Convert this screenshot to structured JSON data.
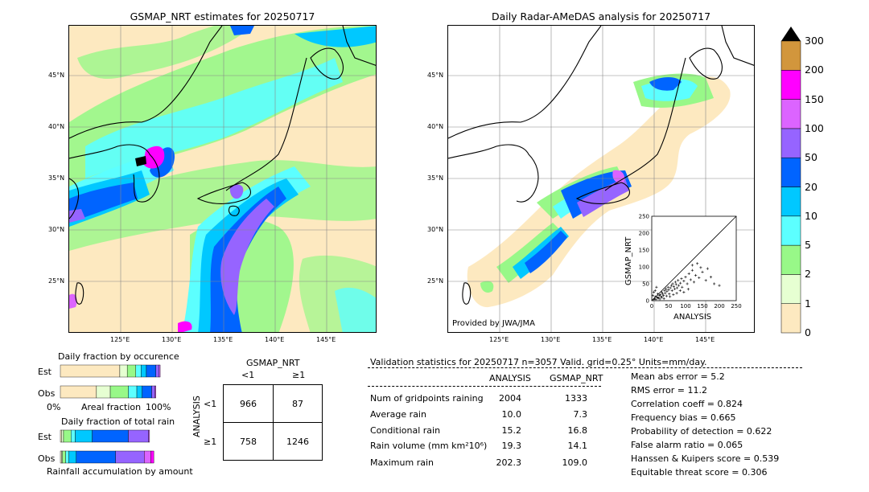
{
  "left_map": {
    "title": "GSMAP_NRT estimates for 20250717",
    "lat_labels": [
      "45°N",
      "40°N",
      "35°N",
      "30°N",
      "25°N"
    ],
    "lon_labels": [
      "125°E",
      "130°E",
      "135°E",
      "140°E",
      "145°E"
    ]
  },
  "right_map": {
    "title": "Daily Radar-AMeDAS analysis for 20250717",
    "lat_labels": [
      "45°N",
      "40°N",
      "35°N",
      "30°N",
      "25°N"
    ],
    "lon_labels": [
      "125°E",
      "130°E",
      "135°E",
      "140°E",
      "145°E"
    ],
    "credit": "Provided by JWA/JMA"
  },
  "colorbar": {
    "levels": [
      "0",
      "1",
      "2",
      "5",
      "10",
      "20",
      "50",
      "100",
      "150",
      "200",
      "300"
    ],
    "colors": [
      "#fde9c0",
      "#e6ffd2",
      "#98f888",
      "#5cffff",
      "#00c8ff",
      "#0064ff",
      "#9664ff",
      "#dc64ff",
      "#ff00ff",
      "#d2963c"
    ],
    "extend_color": "#000000"
  },
  "occurrence": {
    "title": "Daily fraction by occurence",
    "row_est": "Est",
    "row_obs": "Obs",
    "x_left": "0%",
    "x_mid": "Areal fraction",
    "x_right": "100%",
    "est_fracs": [
      0.56,
      0.07,
      0.08,
      0.05,
      0.05,
      0.09,
      0.03,
      0.01
    ],
    "obs_fracs": [
      0.34,
      0.13,
      0.17,
      0.08,
      0.05,
      0.09,
      0.03,
      0.01
    ]
  },
  "total_rain": {
    "title": "Daily fraction of total rain",
    "row_est": "Est",
    "row_obs": "Obs",
    "x_label": "Rainfall accumulation by amount",
    "est_fracs": [
      0.01,
      0.02,
      0.07,
      0.04,
      0.16,
      0.34,
      0.19,
      0.01
    ],
    "obs_fracs": [
      0.01,
      0.01,
      0.03,
      0.03,
      0.07,
      0.37,
      0.27,
      0.06,
      0.03
    ]
  },
  "contingency": {
    "title": "GSMAP_NRT",
    "col_lt": "<1",
    "col_ge": "≥1",
    "row_axis": "ANALYSIS",
    "row_lt": "<1",
    "row_ge": "≥1",
    "cells": [
      "966",
      "87",
      "758",
      "1246"
    ]
  },
  "validation": {
    "header": "Validation statistics for 20250717  n=3057 Valid. grid=0.25° Units=mm/day.",
    "col_analysis": "ANALYSIS",
    "col_gsmap": "GSMAP_NRT",
    "rows": [
      {
        "label": "Num of gridpoints raining",
        "analysis": "2004",
        "gsmap": "1333"
      },
      {
        "label": "Average rain",
        "analysis": "10.0",
        "gsmap": "7.3"
      },
      {
        "label": "Conditional rain",
        "analysis": "15.2",
        "gsmap": "16.8"
      },
      {
        "label": "Rain volume (mm km²10⁶)",
        "analysis": "19.3",
        "gsmap": "14.1"
      },
      {
        "label": "Maximum rain",
        "analysis": "202.3",
        "gsmap": "109.0"
      }
    ],
    "scores": [
      "Mean abs error =    5.2",
      "RMS error =   11.2",
      "Correlation coeff =  0.824",
      "Frequency bias =  0.665",
      "Probability of detection =  0.622",
      "False alarm ratio =  0.065",
      "Hanssen & Kuipers score =  0.539",
      "Equitable threat score =  0.306"
    ]
  },
  "chart_data": {
    "type": "scatter",
    "xlabel": "ANALYSIS",
    "ylabel": "GSMAP_NRT",
    "xlim": [
      0,
      250
    ],
    "ylim": [
      0,
      250
    ],
    "ticks": [
      0,
      50,
      100,
      150,
      200,
      250
    ],
    "points": [
      [
        5,
        3
      ],
      [
        8,
        6
      ],
      [
        10,
        12
      ],
      [
        12,
        4
      ],
      [
        15,
        10
      ],
      [
        18,
        20
      ],
      [
        20,
        8
      ],
      [
        22,
        15
      ],
      [
        25,
        18
      ],
      [
        28,
        12
      ],
      [
        30,
        25
      ],
      [
        32,
        20
      ],
      [
        35,
        15
      ],
      [
        38,
        30
      ],
      [
        40,
        22
      ],
      [
        42,
        35
      ],
      [
        45,
        28
      ],
      [
        48,
        40
      ],
      [
        50,
        32
      ],
      [
        52,
        20
      ],
      [
        55,
        38
      ],
      [
        58,
        45
      ],
      [
        60,
        30
      ],
      [
        62,
        50
      ],
      [
        65,
        42
      ],
      [
        68,
        35
      ],
      [
        70,
        55
      ],
      [
        72,
        48
      ],
      [
        75,
        38
      ],
      [
        78,
        60
      ],
      [
        80,
        45
      ],
      [
        85,
        52
      ],
      [
        88,
        65
      ],
      [
        90,
        40
      ],
      [
        95,
        58
      ],
      [
        100,
        70
      ],
      [
        105,
        50
      ],
      [
        110,
        80
      ],
      [
        115,
        62
      ],
      [
        120,
        90
      ],
      [
        125,
        55
      ],
      [
        130,
        75
      ],
      [
        140,
        68
      ],
      [
        150,
        85
      ],
      [
        160,
        60
      ],
      [
        175,
        70
      ],
      [
        200,
        45
      ],
      [
        3,
        15
      ],
      [
        6,
        25
      ],
      [
        10,
        30
      ],
      [
        14,
        40
      ],
      [
        18,
        8
      ],
      [
        24,
        5
      ],
      [
        30,
        10
      ],
      [
        36,
        6
      ],
      [
        44,
        14
      ],
      [
        54,
        12
      ],
      [
        64,
        18
      ],
      [
        74,
        22
      ],
      [
        84,
        30
      ],
      [
        95,
        25
      ],
      [
        108,
        34
      ],
      [
        120,
        105
      ],
      [
        135,
        110
      ],
      [
        145,
        98
      ],
      [
        165,
        95
      ],
      [
        185,
        50
      ]
    ]
  }
}
